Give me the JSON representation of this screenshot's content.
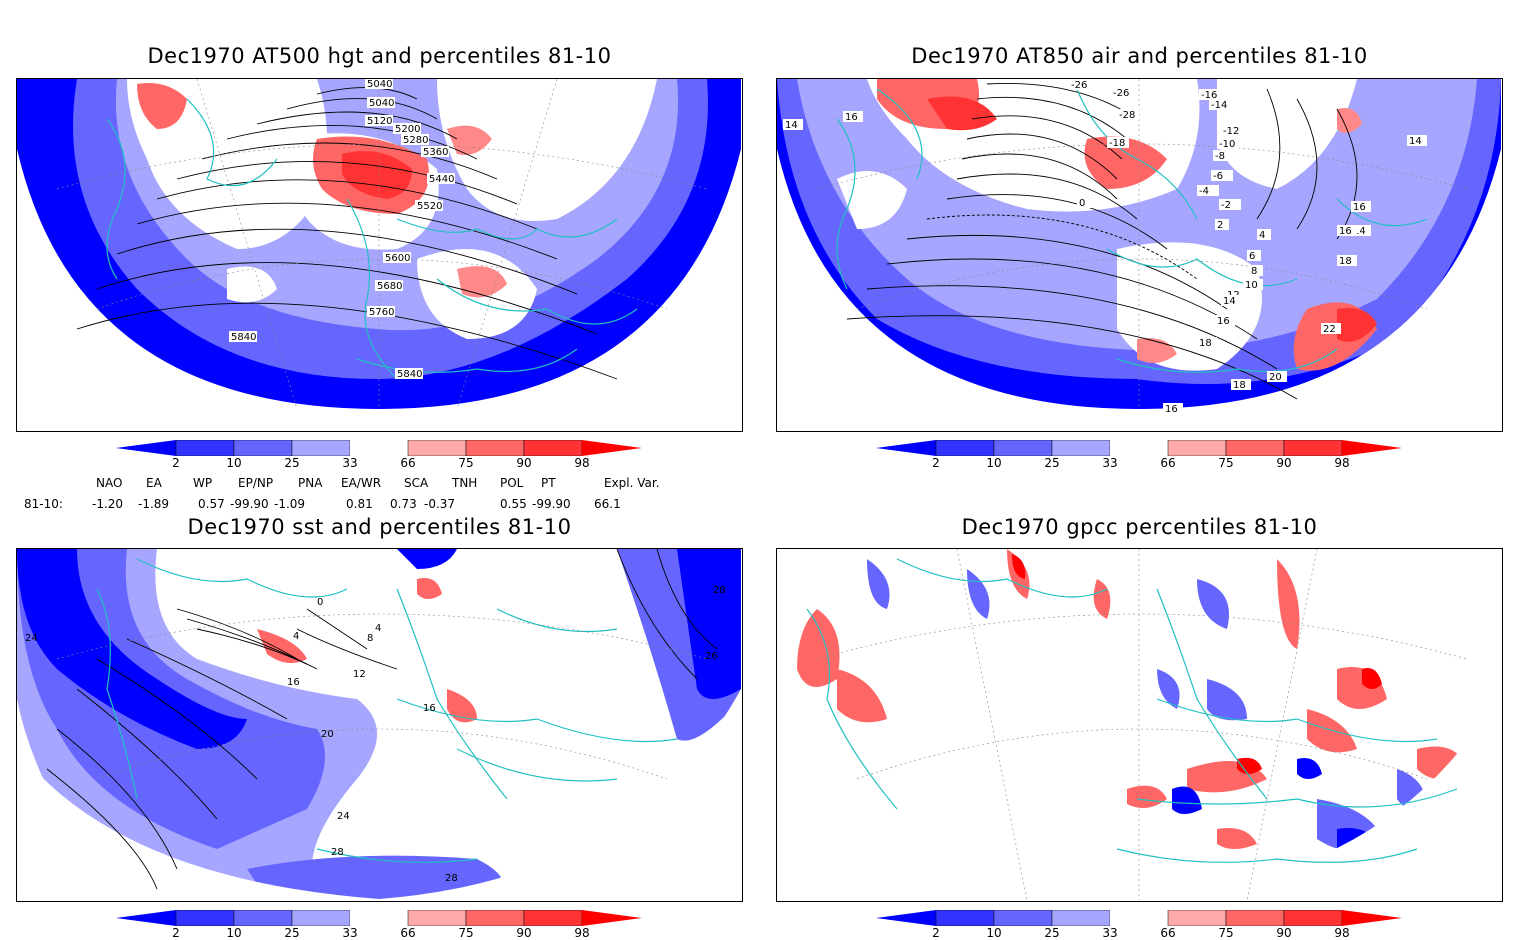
{
  "panels": [
    {
      "title": "Dec1970 AT500 hgt and percentiles 81-10",
      "contour_labels": [
        "5040",
        "5120",
        "5200",
        "5280",
        "5360",
        "5440",
        "5520",
        "5600",
        "5680",
        "5760",
        "5840",
        "5840"
      ]
    },
    {
      "title": "Dec1970 AT850 air and percentiles 81-10",
      "contour_labels": [
        "-26",
        "-16",
        "-14",
        "-12",
        "-10",
        "-8",
        "-28",
        "-18",
        "-6",
        "-4",
        "-2",
        "0",
        "2",
        "4",
        "6",
        "8",
        "10",
        "12",
        "14",
        "16",
        "18",
        "14",
        "16",
        "14",
        "16",
        "14",
        "16",
        "18",
        "20",
        "22",
        "16",
        "18"
      ]
    },
    {
      "title": "Dec1970 sst and percentiles 81-10",
      "contour_labels": [
        "0",
        "4",
        "4",
        "8",
        "12",
        "16",
        "16",
        "20",
        "24",
        "24",
        "28",
        "28",
        "28",
        "26"
      ]
    },
    {
      "title": "Dec1970 gpcc percentiles 81-10",
      "contour_labels": []
    }
  ],
  "colorbar": {
    "ticks": [
      "2",
      "10",
      "25",
      "33",
      "66",
      "75",
      "90",
      "98"
    ],
    "colors": {
      "below2": "#0000ff",
      "b2_10": "#3333ff",
      "b10_25": "#6666ff",
      "b25_33": "#a6a6ff",
      "mid": "#ffffff",
      "a66_75": "#ffaaaa",
      "a75_90": "#ff6666",
      "a90_98": "#ff3333",
      "above98": "#ff0000"
    }
  },
  "indices": {
    "headers": [
      "NAO",
      "EA",
      "WP",
      "EP/NP",
      "PNA",
      "EA/WR",
      "SCA",
      "TNH",
      "POL",
      "PT",
      "Expl. Var."
    ],
    "row_label": "81-10:",
    "values": [
      "-1.20",
      "-1.89",
      "0.57",
      "-99.90",
      "-1.09",
      "0.81",
      "0.73",
      "-0.37",
      "0.55",
      "-99.90",
      "66.1"
    ]
  },
  "colors": {
    "coastline": "#20c0c0",
    "contour": "#000000",
    "frame": "#000000"
  }
}
